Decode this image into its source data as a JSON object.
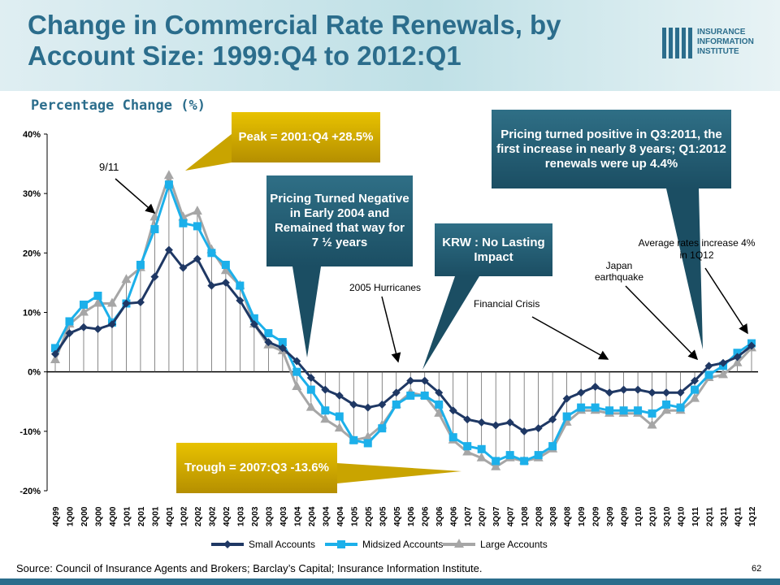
{
  "header": {
    "title": "Change in Commercial Rate Renewals, by Account Size: 1999:Q4 to 2012:Q1",
    "logo": [
      "INSURANCE",
      "INFORMATION",
      "INSTITUTE"
    ]
  },
  "chart_data": {
    "type": "line",
    "subtitle": "Percentage Change (%)",
    "categories": [
      "4Q99",
      "1Q00",
      "2Q00",
      "3Q00",
      "4Q00",
      "1Q01",
      "2Q01",
      "3Q01",
      "4Q01",
      "1Q02",
      "2Q02",
      "3Q02",
      "4Q02",
      "1Q03",
      "2Q03",
      "3Q03",
      "4Q03",
      "1Q04",
      "2Q04",
      "3Q04",
      "4Q04",
      "1Q05",
      "2Q05",
      "3Q05",
      "4Q05",
      "1Q06",
      "2Q06",
      "3Q06",
      "4Q06",
      "1Q07",
      "2Q07",
      "3Q07",
      "4Q07",
      "1Q08",
      "2Q08",
      "3Q08",
      "4Q08",
      "1Q09",
      "2Q09",
      "3Q09",
      "4Q09",
      "1Q10",
      "2Q10",
      "3Q10",
      "4Q10",
      "1Q11",
      "2Q11",
      "3Q11",
      "4Q11",
      "1Q12"
    ],
    "series": [
      {
        "name": "Small Accounts",
        "color": "#1f3864",
        "marker": "diamond",
        "values": [
          3,
          6.5,
          7.5,
          7.2,
          8,
          11.5,
          11.7,
          16,
          20.5,
          17.5,
          19,
          14.5,
          15,
          12,
          8,
          5,
          4,
          1.8,
          -1,
          -3,
          -4,
          -5.5,
          -6,
          -5.5,
          -3.5,
          -1.5,
          -1.5,
          -3.5,
          -6.5,
          -8,
          -8.5,
          -9,
          -8.5,
          -10,
          -9.5,
          -8,
          -4.5,
          -3.5,
          -2.5,
          -3.5,
          -3,
          -3,
          -3.5,
          -3.5,
          -3.5,
          -1.5,
          1,
          1.5,
          2.5,
          4.4
        ]
      },
      {
        "name": "Midsized Accounts",
        "color": "#1cb0ea",
        "marker": "square",
        "values": [
          4,
          8.5,
          11.3,
          12.8,
          8.3,
          11.5,
          18,
          24,
          31.5,
          25,
          24.5,
          20,
          18,
          14.5,
          9,
          6.5,
          5,
          0,
          -3,
          -6.5,
          -7.5,
          -11.5,
          -12,
          -9.5,
          -5.5,
          -4,
          -4,
          -5.5,
          -11,
          -12.5,
          -13,
          -15,
          -14,
          -15,
          -14,
          -12.5,
          -7.5,
          -6,
          -6,
          -6.5,
          -6.5,
          -6.5,
          -7,
          -5.5,
          -6,
          -3,
          -0.5,
          1,
          3.2,
          4.8
        ]
      },
      {
        "name": "Large Accounts",
        "color": "#a6a6a6",
        "marker": "triangle",
        "values": [
          2,
          8,
          10,
          11.5,
          11.5,
          15.5,
          17.5,
          26,
          33,
          26,
          27,
          20.5,
          17,
          14.5,
          8,
          4.5,
          3.5,
          -2.5,
          -6,
          -8,
          -9.5,
          -11.5,
          -11,
          -9,
          -5.5,
          -3.5,
          -4,
          -7,
          -11.5,
          -13.5,
          -14.5,
          -16,
          -14.5,
          -15,
          -14.5,
          -13,
          -8.5,
          -6.5,
          -6.5,
          -7,
          -7,
          -7,
          -9,
          -6.5,
          -6.5,
          -4.5,
          -1,
          -0.5,
          1.5,
          4
        ]
      }
    ],
    "ylim": [
      -20,
      40
    ],
    "yticks": [
      {
        "value": -20,
        "label": "-20%"
      },
      {
        "value": -10,
        "label": "-10%"
      },
      {
        "value": 0,
        "label": "0%"
      },
      {
        "value": 10,
        "label": "10%"
      },
      {
        "value": 20,
        "label": "20%"
      },
      {
        "value": 30,
        "label": "30%"
      },
      {
        "value": 40,
        "label": "40%"
      }
    ],
    "legend": "bottom",
    "callouts": [
      "Peak = 2001:Q4 +28.5%",
      "Pricing Turned Negative in Early 2004 and Remained that way for 7 ½ years",
      "KRW : No Lasting Impact",
      "Pricing turned positive in Q3:2011, the first increase in nearly 8 years; Q1:2012 renewals were up 4.4%",
      "Trough = 2007:Q3 -13.6%"
    ],
    "annotations": [
      "9/11",
      "2005 Hurricanes",
      "Financial Crisis",
      "Japan earthquake",
      "Average rates increase 4% in 1Q12"
    ]
  },
  "footer": {
    "source": "Source: Council of Insurance Agents and Brokers; Barclay’s Capital; Insurance Information Institute.",
    "page": "62"
  }
}
